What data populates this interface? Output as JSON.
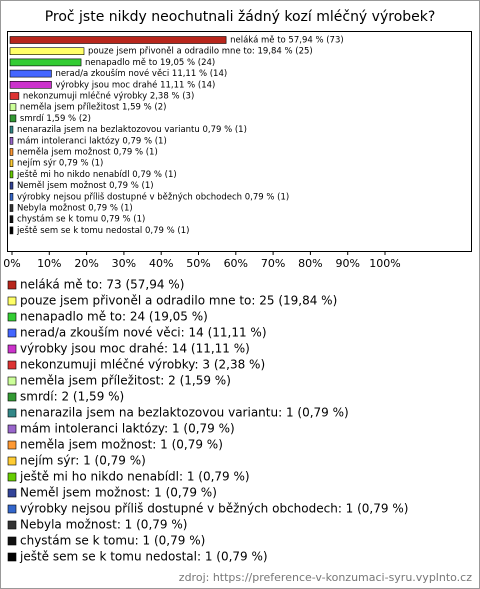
{
  "chart_data": {
    "type": "hbar",
    "title": "Proč jste nikdy neochutnali žádný kozí mléčný výrobek?",
    "values": [
      57.94,
      19.84,
      19.05,
      11.11,
      11.11,
      2.38,
      1.59,
      1.59,
      0.79,
      0.79,
      0.79,
      0.79,
      0.79,
      0.79,
      0.79,
      0.79,
      0.79,
      0.79
    ],
    "value_labels": [
      "neláká mě to 57,94 % (73)",
      "pouze jsem přivoněl a odradilo mne to: 19,84 % (25)",
      "nenapadlo mě to 19,05 % (24)",
      "nerad/a zkouším nové věci 11,11 % (14)",
      "výrobky jsou moc drahé 11,11 % (14)",
      "nekonzumuji mléčné výrobky 2,38 % (3)",
      "neměla jsem příležitost 1,59 % (2)",
      "smrdí 1,59 % (2)",
      "nenarazila jsem na bezlaktozovou variantu 0,79 % (1)",
      "mám intoleranci laktózy 0,79 % (1)",
      "neměla jsem možnost 0,79 % (1)",
      "nejím sýr 0,79 % (1)",
      "ještě mi ho nikdo nenabídl 0,79 % (1)",
      "Neměl jsem možnost 0,79 % (1)",
      "výrobky nejsou příliš dostupné v běžných obchodech 0,79 % (1)",
      "Nebyla možnost 0,79 % (1)",
      "chystám se k tomu 0,79 % (1)",
      "ještě sem se k tomu nedostal 0,79 % (1)"
    ],
    "legend": [
      "neláká mě to: 73 (57,94 %)",
      "pouze jsem přivoněl a odradilo mne to: 25 (19,84 %)",
      "nenapadlo mě to: 24 (19,05 %)",
      "nerad/a zkouším nové věci: 14 (11,11 %)",
      "výrobky jsou moc drahé: 14 (11,11 %)",
      "nekonzumuji mléčné výrobky: 3 (2,38 %)",
      "neměla jsem příležitost: 2 (1,59 %)",
      "smrdí: 2 (1,59 %)",
      "nenarazila jsem na bezlaktozovou variantu: 1 (0,79 %)",
      "mám intoleranci laktózy: 1 (0,79 %)",
      "neměla jsem možnost: 1 (0,79 %)",
      "nejím sýr: 1 (0,79 %)",
      "ještě mi ho nikdo nenabídl: 1 (0,79 %)",
      "Neměl jsem možnost: 1 (0,79 %)",
      "výrobky nejsou příliš dostupné v běžných obchodech: 1 (0,79 %)",
      "Nebyla možnost: 1 (0,79 %)",
      "chystám se k tomu: 1 (0,79 %)",
      "ještě sem se k tomu nedostal: 1 (0,79 %)"
    ],
    "colors": [
      "#b8261c",
      "#ffff66",
      "#33cc33",
      "#4466ff",
      "#cc33cc",
      "#dd3333",
      "#ccff99",
      "#339933",
      "#338888",
      "#9966cc",
      "#ff9933",
      "#ffcc33",
      "#66cc00",
      "#334499",
      "#3366cc",
      "#333333",
      "#111111",
      "#000000"
    ],
    "xlim": [
      0,
      100
    ],
    "xticks": [
      {
        "value": 0,
        "label": "0%"
      },
      {
        "value": 10,
        "label": "10%"
      },
      {
        "value": 20,
        "label": "20%"
      },
      {
        "value": 30,
        "label": "30%"
      },
      {
        "value": 40,
        "label": "40%"
      },
      {
        "value": 50,
        "label": "50%"
      },
      {
        "value": 60,
        "label": "60%"
      },
      {
        "value": 70,
        "label": "70%"
      },
      {
        "value": 80,
        "label": "80%"
      },
      {
        "value": 90,
        "label": "90%"
      },
      {
        "value": 100,
        "label": "100%"
      }
    ],
    "source": "zdroj: https://preference-v-konzumaci-syru.vyplnto.cz"
  }
}
